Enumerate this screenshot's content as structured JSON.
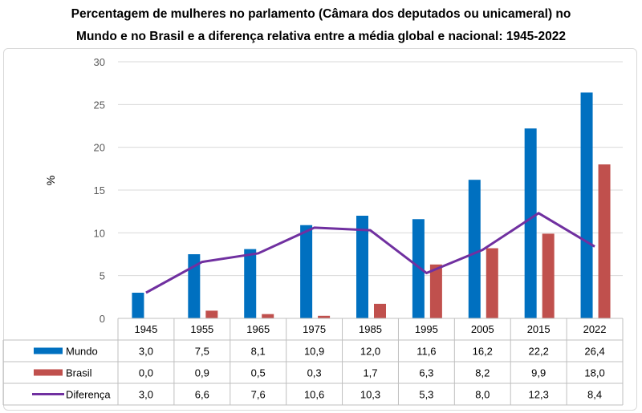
{
  "title_line1": "Percentagem de mulheres no parlamento (Câmara dos deputados ou unicameral) no",
  "title_line2": "Mundo e no Brasil e a diferença relativa entre a média global e nacional: 1945-2022",
  "chart_data": {
    "type": "bar",
    "categories": [
      "1945",
      "1955",
      "1965",
      "1975",
      "1985",
      "1995",
      "2005",
      "2015",
      "2022"
    ],
    "ylabel": "%",
    "ylim": [
      0,
      30
    ],
    "yticks": [
      0,
      5,
      10,
      15,
      20,
      25,
      30
    ],
    "grid": true,
    "legend": "data-table",
    "series": [
      {
        "name": "Mundo",
        "kind": "bar",
        "color": "#0070c0",
        "values": [
          3.0,
          7.5,
          8.1,
          10.9,
          12.0,
          11.6,
          16.2,
          22.2,
          26.4
        ],
        "labels": [
          "3,0",
          "7,5",
          "8,1",
          "10,9",
          "12,0",
          "11,6",
          "16,2",
          "22,2",
          "26,4"
        ]
      },
      {
        "name": "Brasil",
        "kind": "bar",
        "color": "#c0504d",
        "values": [
          0.0,
          0.9,
          0.5,
          0.3,
          1.7,
          6.3,
          8.2,
          9.9,
          18.0
        ],
        "labels": [
          "0,0",
          "0,9",
          "0,5",
          "0,3",
          "1,7",
          "6,3",
          "8,2",
          "9,9",
          "18,0"
        ]
      },
      {
        "name": "Diferença",
        "kind": "line",
        "color": "#7030a0",
        "values": [
          3.0,
          6.6,
          7.6,
          10.6,
          10.3,
          5.3,
          8.0,
          12.3,
          8.4
        ],
        "labels": [
          "3,0",
          "6,6",
          "7,6",
          "10,6",
          "10,3",
          "5,3",
          "8,0",
          "12,3",
          "8,4"
        ]
      }
    ]
  }
}
